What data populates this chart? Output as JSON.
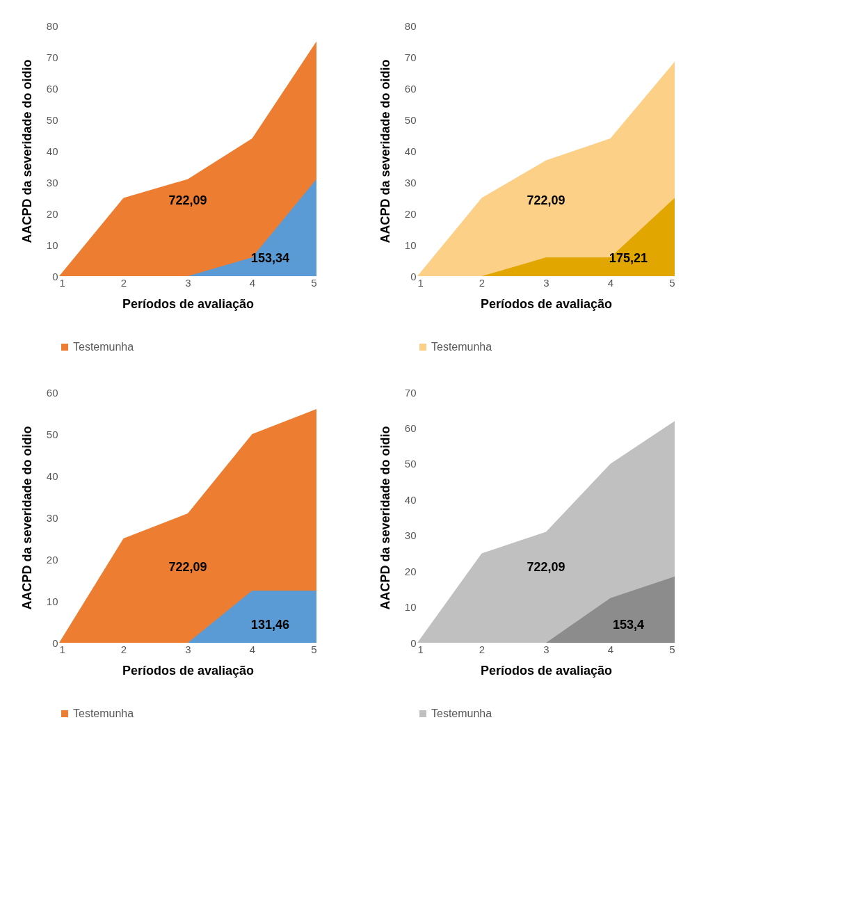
{
  "chart_data": [
    {
      "type": "area",
      "xlabel": "Períodos de avaliação",
      "ylabel": "AACPD da severidade do oidio",
      "x": [
        1,
        2,
        3,
        4,
        5
      ],
      "xlim": [
        1,
        5
      ],
      "xticks": [
        1,
        2,
        3,
        4,
        5
      ],
      "ylim": [
        0,
        80
      ],
      "yticks": [
        0,
        10,
        20,
        30,
        40,
        50,
        60,
        70,
        80
      ],
      "grid": false,
      "legend": "bottom",
      "series": [
        {
          "name": "Testemunha",
          "color": "#ed7d31",
          "values": [
            0,
            25,
            31,
            44,
            75
          ]
        },
        {
          "color": "#5b9bd5",
          "values": [
            0,
            0,
            0,
            6,
            31
          ]
        }
      ],
      "annotations": [
        "722,09",
        "153,34"
      ]
    },
    {
      "type": "area",
      "xlabel": "Períodos de avaliação",
      "ylabel": "AACPD da severidade do oidio",
      "x": [
        1,
        2,
        3,
        4,
        5
      ],
      "xlim": [
        1,
        5
      ],
      "xticks": [
        1,
        2,
        3,
        4,
        5
      ],
      "ylim": [
        0,
        80
      ],
      "yticks": [
        0,
        10,
        20,
        30,
        40,
        50,
        60,
        70,
        80
      ],
      "grid": false,
      "legend": "bottom",
      "series": [
        {
          "name": "Testemunha",
          "color": "#fdd088",
          "values": [
            0,
            25,
            37,
            44,
            68.5
          ]
        },
        {
          "color": "#e2a600",
          "values": [
            0,
            0,
            6,
            6,
            25
          ]
        }
      ],
      "annotations": [
        "722,09",
        "175,21"
      ]
    },
    {
      "type": "area",
      "xlabel": "Períodos de avaliação",
      "ylabel": "AACPD da severidade do oidio",
      "x": [
        1,
        2,
        3,
        4,
        5
      ],
      "xlim": [
        1,
        5
      ],
      "xticks": [
        1,
        2,
        3,
        4,
        5
      ],
      "ylim": [
        0,
        60
      ],
      "yticks": [
        0,
        10,
        20,
        30,
        40,
        50,
        60
      ],
      "grid": false,
      "legend": "bottom",
      "series": [
        {
          "name": "Testemunha",
          "color": "#ed7d31",
          "values": [
            0,
            25,
            31,
            50,
            56
          ]
        },
        {
          "color": "#5b9bd5",
          "values": [
            0,
            0,
            0,
            12.5,
            12.5
          ]
        }
      ],
      "annotations": [
        "722,09",
        "131,46"
      ]
    },
    {
      "type": "area",
      "xlabel": "Períodos de avaliação",
      "ylabel": "AACPD da severidade do oidio",
      "x": [
        1,
        2,
        3,
        4,
        5
      ],
      "xlim": [
        1,
        5
      ],
      "xticks": [
        1,
        2,
        3,
        4,
        5
      ],
      "ylim": [
        0,
        70
      ],
      "yticks": [
        0,
        10,
        20,
        30,
        40,
        50,
        60,
        70
      ],
      "grid": false,
      "legend": "bottom",
      "series": [
        {
          "name": "Testemunha",
          "color": "#c0c0c0",
          "values": [
            0,
            25,
            31,
            50,
            62
          ]
        },
        {
          "color": "#8c8c8c",
          "values": [
            0,
            0,
            0,
            12.5,
            18.5
          ]
        }
      ],
      "annotations": [
        "722,09",
        "153,4"
      ]
    }
  ]
}
